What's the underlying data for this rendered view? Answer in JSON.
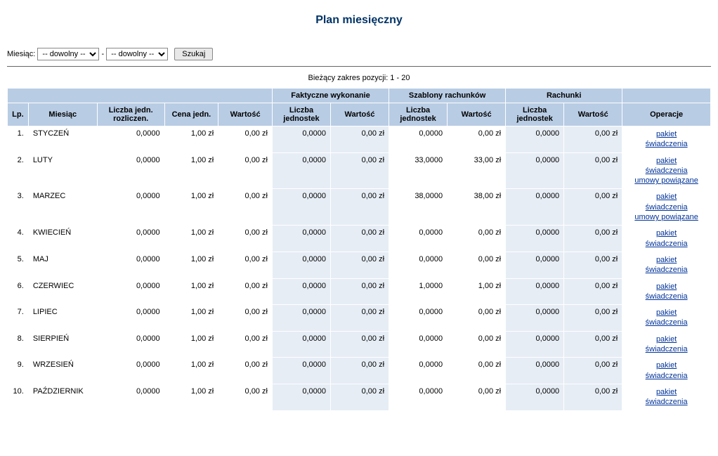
{
  "title": "Plan miesięczny",
  "filter": {
    "label": "Miesiąc:",
    "option1": "-- dowolny --",
    "option2": "-- dowolny --",
    "separator": "-",
    "search_label": "Szukaj"
  },
  "range_text": "Bieżący zakres pozycji: 1 - 20",
  "headers": {
    "group_faktyczne": "Faktyczne wykonanie",
    "group_szablony": "Szablony rachunków",
    "group_rachunki": "Rachunki",
    "lp": "Lp.",
    "miesiac": "Miesiąc",
    "liczba_jedn_rozliczen": "Liczba jedn. rozliczen.",
    "cena_jedn": "Cena jedn.",
    "wartosc": "Wartość",
    "liczba_jednostek": "Liczba jednostek",
    "operacje": "Operacje"
  },
  "op_labels": {
    "pakiet": "pakiet",
    "swiadczenia": "świadczenia",
    "umowy": "umowy powiązane"
  },
  "rows": [
    {
      "lp": "1.",
      "month": "STYCZEŃ",
      "ljr": "0,0000",
      "cena": "1,00 zł",
      "wart": "0,00 zł",
      "f_j": "0,0000",
      "f_w": "0,00 zł",
      "s_j": "0,0000",
      "s_w": "0,00 zł",
      "r_j": "0,0000",
      "r_w": "0,00 zł",
      "ops": [
        "pakiet",
        "świadczenia"
      ]
    },
    {
      "lp": "2.",
      "month": "LUTY",
      "ljr": "0,0000",
      "cena": "1,00 zł",
      "wart": "0,00 zł",
      "f_j": "0,0000",
      "f_w": "0,00 zł",
      "s_j": "33,0000",
      "s_w": "33,00 zł",
      "r_j": "0,0000",
      "r_w": "0,00 zł",
      "ops": [
        "pakiet",
        "świadczenia",
        "umowy powiązane"
      ]
    },
    {
      "lp": "3.",
      "month": "MARZEC",
      "ljr": "0,0000",
      "cena": "1,00 zł",
      "wart": "0,00 zł",
      "f_j": "0,0000",
      "f_w": "0,00 zł",
      "s_j": "38,0000",
      "s_w": "38,00 zł",
      "r_j": "0,0000",
      "r_w": "0,00 zł",
      "ops": [
        "pakiet",
        "świadczenia",
        "umowy powiązane"
      ]
    },
    {
      "lp": "4.",
      "month": "KWIECIEŃ",
      "ljr": "0,0000",
      "cena": "1,00 zł",
      "wart": "0,00 zł",
      "f_j": "0,0000",
      "f_w": "0,00 zł",
      "s_j": "0,0000",
      "s_w": "0,00 zł",
      "r_j": "0,0000",
      "r_w": "0,00 zł",
      "ops": [
        "pakiet",
        "świadczenia"
      ]
    },
    {
      "lp": "5.",
      "month": "MAJ",
      "ljr": "0,0000",
      "cena": "1,00 zł",
      "wart": "0,00 zł",
      "f_j": "0,0000",
      "f_w": "0,00 zł",
      "s_j": "0,0000",
      "s_w": "0,00 zł",
      "r_j": "0,0000",
      "r_w": "0,00 zł",
      "ops": [
        "pakiet",
        "świadczenia"
      ]
    },
    {
      "lp": "6.",
      "month": "CZERWIEC",
      "ljr": "0,0000",
      "cena": "1,00 zł",
      "wart": "0,00 zł",
      "f_j": "0,0000",
      "f_w": "0,00 zł",
      "s_j": "1,0000",
      "s_w": "1,00 zł",
      "r_j": "0,0000",
      "r_w": "0,00 zł",
      "ops": [
        "pakiet",
        "świadczenia"
      ]
    },
    {
      "lp": "7.",
      "month": "LIPIEC",
      "ljr": "0,0000",
      "cena": "1,00 zł",
      "wart": "0,00 zł",
      "f_j": "0,0000",
      "f_w": "0,00 zł",
      "s_j": "0,0000",
      "s_w": "0,00 zł",
      "r_j": "0,0000",
      "r_w": "0,00 zł",
      "ops": [
        "pakiet",
        "świadczenia"
      ]
    },
    {
      "lp": "8.",
      "month": "SIERPIEŃ",
      "ljr": "0,0000",
      "cena": "1,00 zł",
      "wart": "0,00 zł",
      "f_j": "0,0000",
      "f_w": "0,00 zł",
      "s_j": "0,0000",
      "s_w": "0,00 zł",
      "r_j": "0,0000",
      "r_w": "0,00 zł",
      "ops": [
        "pakiet",
        "świadczenia"
      ]
    },
    {
      "lp": "9.",
      "month": "WRZESIEŃ",
      "ljr": "0,0000",
      "cena": "1,00 zł",
      "wart": "0,00 zł",
      "f_j": "0,0000",
      "f_w": "0,00 zł",
      "s_j": "0,0000",
      "s_w": "0,00 zł",
      "r_j": "0,0000",
      "r_w": "0,00 zł",
      "ops": [
        "pakiet",
        "świadczenia"
      ]
    },
    {
      "lp": "10.",
      "month": "PAŹDZIERNIK",
      "ljr": "0,0000",
      "cena": "1,00 zł",
      "wart": "0,00 zł",
      "f_j": "0,0000",
      "f_w": "0,00 zł",
      "s_j": "0,0000",
      "s_w": "0,00 zł",
      "r_j": "0,0000",
      "r_w": "0,00 zł",
      "ops": [
        "pakiet",
        "świadczenia"
      ]
    }
  ]
}
